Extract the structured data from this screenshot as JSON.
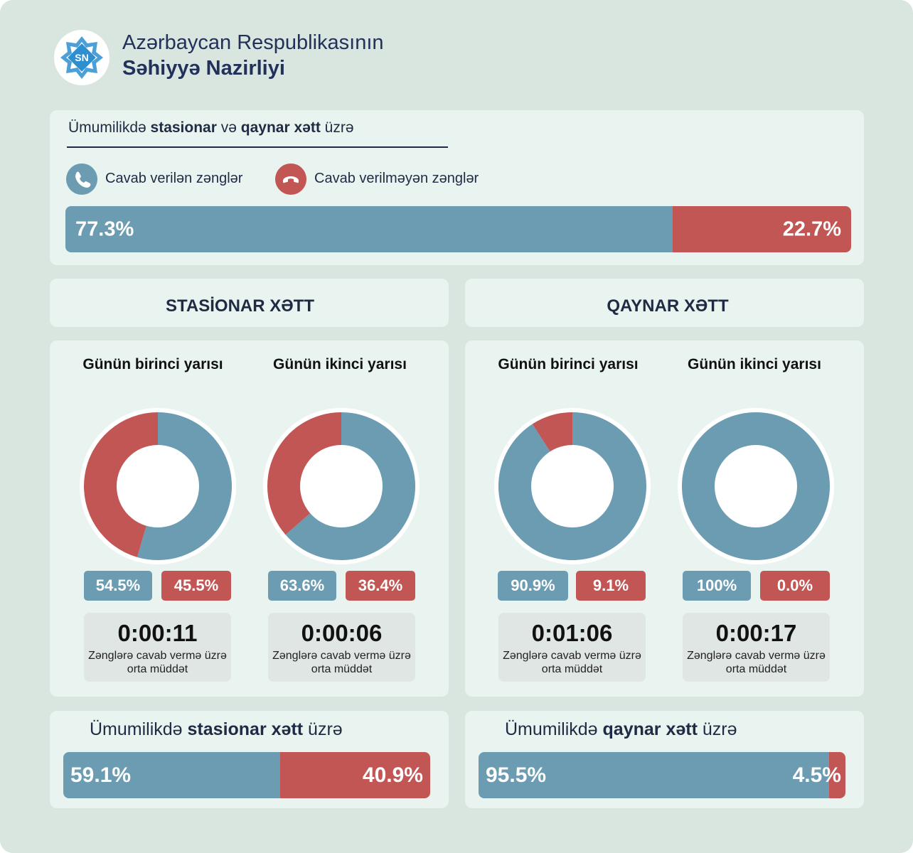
{
  "header": {
    "line1": "Azərbaycan Respublikasının",
    "line2": "Səhiyyə Nazirliyi",
    "logo_letters": "SN",
    "logo_icon": "ministry-emblem-icon"
  },
  "overall": {
    "title_pre": "Ümumilikdə ",
    "title_b1": "stasionar",
    "title_mid": " və ",
    "title_b2": "qaynar xətt",
    "title_post": " üzrə",
    "legend": [
      {
        "label": "Cavab verilən zənglər",
        "icon": "phone-icon",
        "color": "#6b9cb2"
      },
      {
        "label": "Cavab verilməyən zənglər",
        "icon": "phone-hangup-icon",
        "color": "#c25654"
      }
    ],
    "answered_label": "77.3%",
    "unanswered_label": "22.7%"
  },
  "sections": {
    "stationary": {
      "title": "STASİONAR XƏTT",
      "halves": [
        {
          "title": "Günün birinci yarısı",
          "answered_label": "54.5%",
          "unanswered_label": "45.5%",
          "time": "0:00:11",
          "caption": "Zənglərə cavab vermə üzrə orta müddət"
        },
        {
          "title": "Günün ikinci yarısı",
          "answered_label": "63.6%",
          "unanswered_label": "36.4%",
          "time": "0:00:06",
          "caption": "Zənglərə cavab vermə üzrə orta müddət"
        }
      ]
    },
    "hotline": {
      "title": "QAYNAR XƏTT",
      "halves": [
        {
          "title": "Günün birinci yarısı",
          "answered_label": "90.9%",
          "unanswered_label": "9.1%",
          "time": "0:01:06",
          "caption": "Zənglərə cavab vermə üzrə orta müddət"
        },
        {
          "title": "Günün ikinci yarısı",
          "answered_label": "100%",
          "unanswered_label": "0.0%",
          "time": "0:00:17",
          "caption": "Zənglərə cavab vermə üzrə orta müddət"
        }
      ]
    }
  },
  "bottom": {
    "stationary": {
      "title_pre": "Ümumilikdə ",
      "title_bold": "stasionar xətt",
      "title_post": " üzrə",
      "answered_label": "59.1%",
      "unanswered_label": "40.9%"
    },
    "hotline": {
      "title_pre": "Ümumilikdə ",
      "title_bold": "qaynar xətt",
      "title_post": " üzrə",
      "answered_label": "95.5%",
      "unanswered_label": "4.5%"
    }
  },
  "colors": {
    "answered": "#6b9cb2",
    "unanswered": "#c25654",
    "background": "#d8e6df",
    "card": "#e9f3ef"
  },
  "chart_data": [
    {
      "type": "bar",
      "orientation": "horizontal-stacked",
      "categories": [
        "Cavab verilən zənglər",
        "Cavab verilməyən zənglər"
      ],
      "values": [
        77.3,
        22.7
      ]
    },
    {
      "type": "pie",
      "variant": "donut",
      "section": "STASİONAR XƏTT",
      "title": "Günün birinci yarısı",
      "labels": [
        "Cavab verilən zənglər",
        "Cavab verilməyən zənglər"
      ],
      "values": [
        54.5,
        45.5
      ]
    },
    {
      "type": "pie",
      "variant": "donut",
      "section": "STASİONAR XƏTT",
      "title": "Günün ikinci yarısı",
      "labels": [
        "Cavab verilən zənglər",
        "Cavab verilməyən zənglər"
      ],
      "values": [
        63.6,
        36.4
      ]
    },
    {
      "type": "pie",
      "variant": "donut",
      "section": "QAYNAR XƏTT",
      "title": "Günün birinci yarısı",
      "labels": [
        "Cavab verilən zənglər",
        "Cavab verilməyən zənglər"
      ],
      "values": [
        90.9,
        9.1
      ]
    },
    {
      "type": "pie",
      "variant": "donut",
      "section": "QAYNAR XƏTT",
      "title": "Günün ikinci yarısı",
      "labels": [
        "Cavab verilən zənglər",
        "Cavab verilməyən zənglər"
      ],
      "values": [
        100,
        0.0
      ]
    },
    {
      "type": "bar",
      "orientation": "horizontal-stacked",
      "title": "Ümumilikdə stasionar xətt üzrə",
      "categories": [
        "Cavab verilən zənglər",
        "Cavab verilməyən zənglər"
      ],
      "values": [
        59.1,
        40.9
      ]
    },
    {
      "type": "bar",
      "orientation": "horizontal-stacked",
      "title": "Ümumilikdə qaynar xətt üzrə",
      "categories": [
        "Cavab verilən zənglər",
        "Cavab verilməyən zənglər"
      ],
      "values": [
        95.5,
        4.5
      ]
    }
  ]
}
